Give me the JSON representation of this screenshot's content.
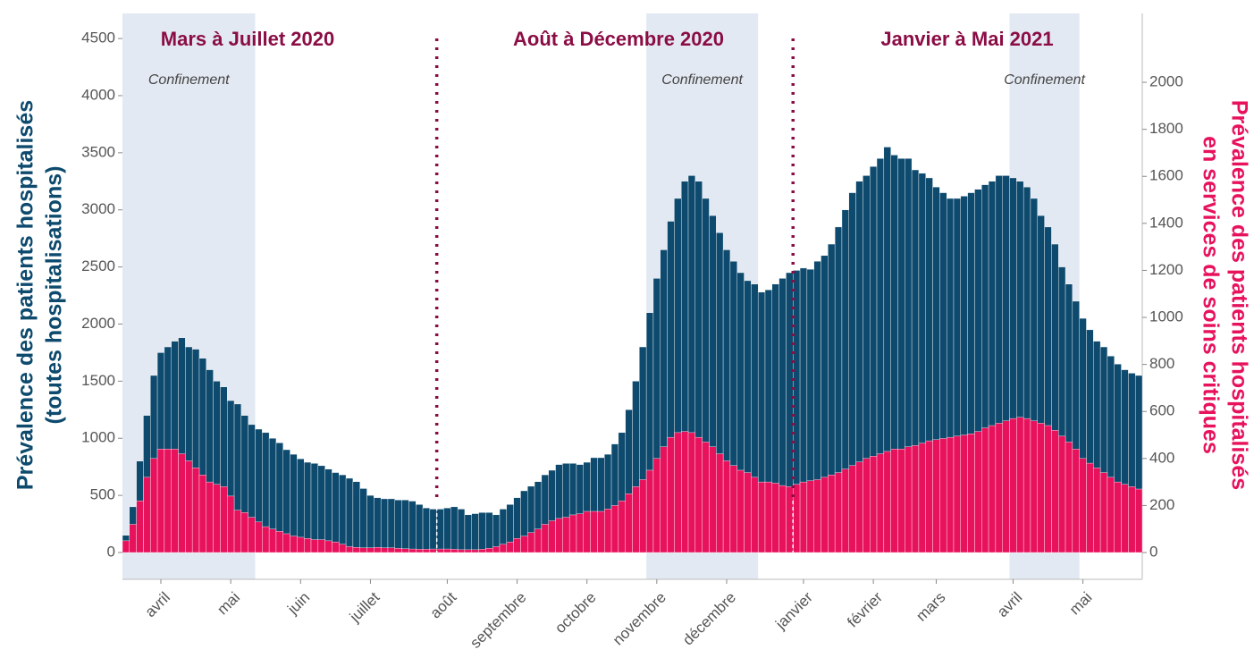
{
  "chart_data": {
    "type": "bar",
    "ylabel": [
      "Prévalence des patients hospitalisés",
      "(toutes hospitalisations)"
    ],
    "y2label": [
      "Prévalence des patients hospitalisés",
      "en services de soins critiques"
    ],
    "categories": [
      null,
      null,
      null,
      null,
      null,
      "avril",
      null,
      null,
      null,
      null,
      null,
      null,
      null,
      null,
      null,
      "mai",
      null,
      null,
      null,
      null,
      null,
      null,
      null,
      null,
      null,
      "juin",
      null,
      null,
      null,
      null,
      null,
      null,
      null,
      null,
      null,
      "juillet",
      null,
      null,
      null,
      null,
      null,
      null,
      null,
      null,
      null,
      null,
      "août",
      null,
      null,
      null,
      null,
      null,
      null,
      null,
      null,
      null,
      "septembre",
      null,
      null,
      null,
      null,
      null,
      null,
      null,
      null,
      null,
      "octobre",
      null,
      null,
      null,
      null,
      null,
      null,
      null,
      null,
      null,
      "novembre",
      null,
      null,
      null,
      null,
      null,
      null,
      null,
      null,
      null,
      "décembre",
      null,
      null,
      null,
      null,
      null,
      null,
      null,
      null,
      null,
      null,
      "janvier",
      null,
      null,
      null,
      null,
      null,
      null,
      null,
      null,
      null,
      "février",
      null,
      null,
      null,
      null,
      null,
      null,
      null,
      null,
      "mars",
      null,
      null,
      null,
      null,
      null,
      null,
      null,
      null,
      null,
      null,
      "avril",
      null,
      null,
      null,
      null,
      null,
      null,
      null,
      null,
      null,
      "mai",
      null,
      null,
      null,
      null,
      null,
      null,
      null,
      null
    ],
    "series": [
      {
        "color": "#0d4a6e",
        "values": [
          150,
          400,
          800,
          1200,
          1550,
          1750,
          1800,
          1850,
          1880,
          1800,
          1780,
          1700,
          1600,
          1500,
          1450,
          1330,
          1300,
          1200,
          1120,
          1080,
          1050,
          1000,
          960,
          900,
          860,
          820,
          790,
          780,
          760,
          730,
          700,
          680,
          650,
          620,
          560,
          500,
          480,
          470,
          470,
          460,
          460,
          450,
          420,
          390,
          380,
          380,
          390,
          400,
          380,
          330,
          340,
          350,
          350,
          330,
          380,
          420,
          480,
          540,
          580,
          620,
          680,
          720,
          770,
          780,
          780,
          770,
          790,
          830,
          830,
          860,
          950,
          1050,
          1250,
          1500,
          1800,
          2100,
          2400,
          2650,
          2900,
          3100,
          3250,
          3300,
          3250,
          3100,
          2950,
          2800,
          2650,
          2550,
          2450,
          2380,
          2350,
          2280,
          2300,
          2350,
          2400,
          2450,
          2470,
          2490,
          2480,
          2550,
          2600,
          2700,
          2850,
          3000,
          3150,
          3250,
          3300,
          3380,
          3450,
          3550,
          3480,
          3450,
          3450,
          3350,
          3320,
          3280,
          3200,
          3150,
          3100,
          3100,
          3120,
          3150,
          3180,
          3220,
          3250,
          3300,
          3300,
          3280,
          3250,
          3200,
          3100,
          2950,
          2850,
          2700,
          2500,
          2350,
          2200,
          2050,
          1950,
          1850,
          1800,
          1720,
          1650,
          1600,
          1570,
          1550
        ]
      },
      {
        "color": "#e8125c",
        "axis": "y2",
        "values": [
          50,
          120,
          220,
          320,
          400,
          440,
          440,
          440,
          420,
          390,
          360,
          330,
          300,
          290,
          280,
          240,
          180,
          170,
          150,
          130,
          110,
          100,
          90,
          80,
          70,
          65,
          60,
          55,
          55,
          50,
          45,
          35,
          25,
          22,
          20,
          20,
          22,
          20,
          20,
          18,
          16,
          15,
          14,
          14,
          15,
          15,
          15,
          14,
          12,
          12,
          12,
          14,
          18,
          25,
          35,
          45,
          60,
          70,
          85,
          100,
          120,
          135,
          145,
          150,
          160,
          165,
          175,
          175,
          175,
          185,
          200,
          220,
          250,
          280,
          310,
          350,
          400,
          450,
          490,
          510,
          515,
          510,
          490,
          470,
          450,
          420,
          390,
          370,
          350,
          340,
          320,
          300,
          300,
          295,
          285,
          280,
          290,
          300,
          305,
          310,
          320,
          330,
          340,
          355,
          370,
          385,
          400,
          410,
          420,
          430,
          440,
          440,
          450,
          455,
          465,
          475,
          480,
          485,
          490,
          495,
          500,
          505,
          515,
          530,
          540,
          550,
          560,
          570,
          575,
          570,
          560,
          550,
          540,
          520,
          495,
          470,
          440,
          400,
          380,
          360,
          340,
          320,
          300,
          290,
          280,
          270
        ]
      }
    ],
    "ylim": [
      -235,
      4720
    ],
    "yticks": [
      0,
      500,
      1000,
      1500,
      2000,
      2500,
      3000,
      3500,
      4000,
      4500
    ],
    "y2lim": [
      -114,
      2293
    ],
    "y2ticks": [
      0,
      200,
      400,
      600,
      800,
      1000,
      1200,
      1400,
      1600,
      1800,
      2000
    ],
    "periods": [
      "Mars à Juillet 2020",
      "Août à Décembre 2020",
      "Janvier à Mai 2021"
    ],
    "dividers": [
      45,
      96
    ],
    "shaded": [
      {
        "from": 0,
        "to": 18,
        "label": "Confinement"
      },
      {
        "from": 75,
        "to": 90,
        "label": "Confinement"
      },
      {
        "from": 127,
        "to": 136,
        "label": "Confinement"
      }
    ]
  }
}
